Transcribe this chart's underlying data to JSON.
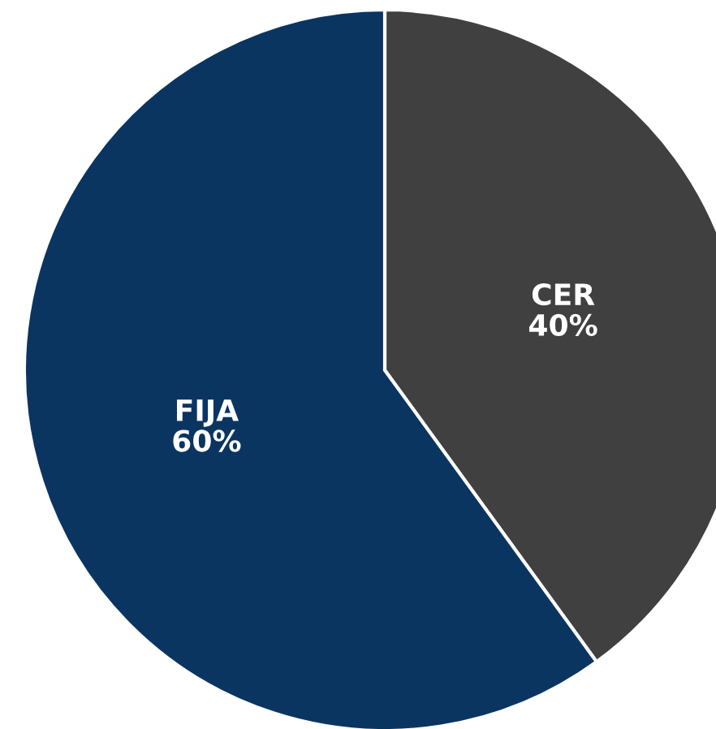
{
  "chart_data": {
    "type": "pie",
    "categories": [
      "CER",
      "FIJA"
    ],
    "values": [
      40,
      60
    ],
    "value_labels": [
      "40%",
      "60%"
    ],
    "colors": [
      "#404040",
      "#0b3561"
    ],
    "legend": false
  }
}
